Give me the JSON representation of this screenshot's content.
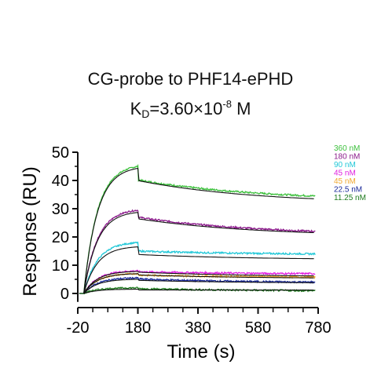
{
  "title": {
    "line1": "CG-probe to PHF14-ePHD",
    "kd_k": "K",
    "kd_sub": "D",
    "kd_mid": "=3.60×10",
    "kd_sup": "-8",
    "kd_unit": " M"
  },
  "chart_data": {
    "type": "line",
    "title": "CG-probe to PHF14-ePHD",
    "subtitle": "KD=3.60×10-8 M",
    "xlabel": "Time (s)",
    "ylabel": "Response (RU)",
    "xlim": [
      -20,
      780
    ],
    "ylim": [
      -3,
      50
    ],
    "xticks": [
      -20,
      180,
      380,
      580,
      780
    ],
    "yticks": [
      0,
      10,
      20,
      30,
      40,
      50
    ],
    "legend_placement": "top-right",
    "grid": false,
    "injection_end_s": 180,
    "series": [
      {
        "name": "360 nM",
        "color": "#3cc03c",
        "peak": 45.0,
        "drop": 4.8,
        "end": 34.5,
        "fit_peak": 44.3,
        "fit_end": 33.5
      },
      {
        "name": "180 nM",
        "color": "#8b1a8b",
        "peak": 29.5,
        "drop": 2.5,
        "end": 22.0,
        "fit_peak": 28.7,
        "fit_end": 21.5
      },
      {
        "name": "90 nM",
        "color": "#22c8d8",
        "peak": 18.0,
        "drop": 3.0,
        "end": 14.0,
        "fit_peak": 16.5,
        "fit_end": 12.3
      },
      {
        "name": "45 nM",
        "color": "#e020e0",
        "peak": 8.0,
        "drop": 0.3,
        "end": 7.0,
        "fit_peak": 7.8,
        "fit_end": 6.2
      },
      {
        "name": "45 nM",
        "color": "#f0a830",
        "peak": 7.0,
        "drop": 0.5,
        "end": 5.8,
        "fit_peak": 7.0,
        "fit_end": 5.5
      },
      {
        "name": "22.5 nM",
        "color": "#1a2a9a",
        "peak": 5.5,
        "drop": 0.4,
        "end": 4.0,
        "fit_peak": 5.0,
        "fit_end": 3.8
      },
      {
        "name": "11.25 nM",
        "color": "#1e7a1e",
        "peak": 2.0,
        "drop": 0.3,
        "end": 1.0,
        "fit_peak": 1.5,
        "fit_end": 1.2
      }
    ]
  }
}
